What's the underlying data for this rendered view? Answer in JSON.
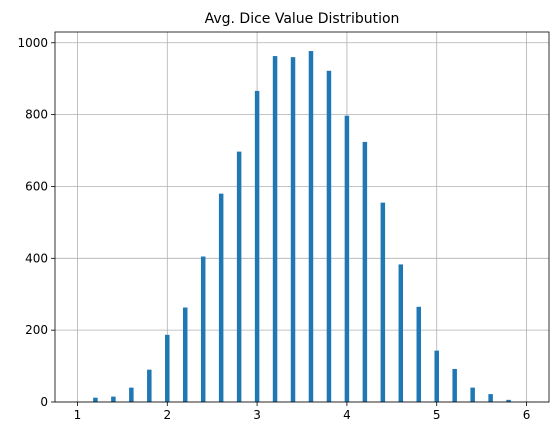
{
  "chart_data": {
    "type": "bar",
    "title": "Avg. Dice Value Distribution",
    "xlabel": "",
    "ylabel": "",
    "xlim": [
      0.75,
      6.25
    ],
    "ylim": [
      0,
      1030
    ],
    "x_ticks": [
      1,
      2,
      3,
      4,
      5,
      6
    ],
    "y_ticks": [
      0,
      200,
      400,
      600,
      800,
      1000
    ],
    "grid": true,
    "bar_color": "#1f77b4",
    "bin_width": 0.05,
    "bars": [
      {
        "x": 1.0,
        "y": 1
      },
      {
        "x": 1.2,
        "y": 12
      },
      {
        "x": 1.4,
        "y": 15
      },
      {
        "x": 1.6,
        "y": 40
      },
      {
        "x": 1.8,
        "y": 90
      },
      {
        "x": 2.0,
        "y": 187
      },
      {
        "x": 2.2,
        "y": 263
      },
      {
        "x": 2.4,
        "y": 405
      },
      {
        "x": 2.6,
        "y": 580
      },
      {
        "x": 2.8,
        "y": 697
      },
      {
        "x": 3.0,
        "y": 866
      },
      {
        "x": 3.2,
        "y": 963
      },
      {
        "x": 3.4,
        "y": 960
      },
      {
        "x": 3.6,
        "y": 977
      },
      {
        "x": 3.8,
        "y": 922
      },
      {
        "x": 4.0,
        "y": 797
      },
      {
        "x": 4.2,
        "y": 724
      },
      {
        "x": 4.4,
        "y": 555
      },
      {
        "x": 4.6,
        "y": 383
      },
      {
        "x": 4.8,
        "y": 265
      },
      {
        "x": 5.0,
        "y": 143
      },
      {
        "x": 5.2,
        "y": 92
      },
      {
        "x": 5.4,
        "y": 40
      },
      {
        "x": 5.6,
        "y": 22
      },
      {
        "x": 5.8,
        "y": 6
      },
      {
        "x": 6.0,
        "y": 1
      }
    ]
  }
}
